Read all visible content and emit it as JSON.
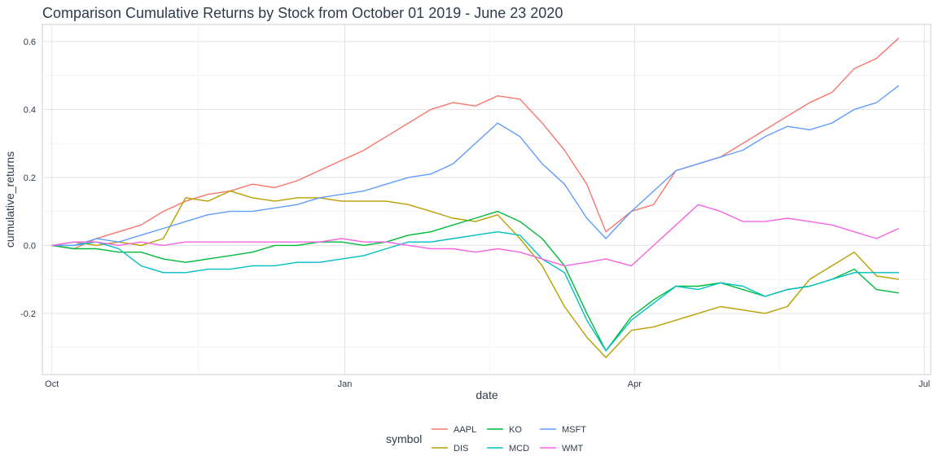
{
  "chart_data": {
    "type": "line",
    "title": "Comparison Cumulative Returns by Stock from October 01 2019 - June 23 2020",
    "xlabel": "date",
    "ylabel": "cumulative_returns",
    "xlim": [
      "2019-09-28",
      "2020-07-03"
    ],
    "ylim": [
      -0.38,
      0.65
    ],
    "x_ticks": [
      {
        "label": "Oct",
        "date": "2019-10-01"
      },
      {
        "label": "Jan",
        "date": "2020-01-01"
      },
      {
        "label": "Apr",
        "date": "2020-04-01"
      },
      {
        "label": "Jul",
        "date": "2020-07-01"
      }
    ],
    "y_ticks": [
      {
        "label": "-0.2",
        "value": -0.2
      },
      {
        "label": "0.0",
        "value": 0.0
      },
      {
        "label": "0.2",
        "value": 0.2
      },
      {
        "label": "0.4",
        "value": 0.4
      },
      {
        "label": "0.6",
        "value": 0.6
      }
    ],
    "grid": true,
    "legend": {
      "title": "symbol",
      "placement": "bottom"
    },
    "series": [
      {
        "name": "AAPL",
        "color": "#F8766D",
        "points": [
          [
            "2019-10-01",
            0.0
          ],
          [
            "2019-10-08",
            -0.01
          ],
          [
            "2019-10-15",
            0.02
          ],
          [
            "2019-10-22",
            0.04
          ],
          [
            "2019-10-29",
            0.06
          ],
          [
            "2019-11-05",
            0.1
          ],
          [
            "2019-11-12",
            0.13
          ],
          [
            "2019-11-19",
            0.15
          ],
          [
            "2019-11-26",
            0.16
          ],
          [
            "2019-12-03",
            0.18
          ],
          [
            "2019-12-10",
            0.17
          ],
          [
            "2019-12-17",
            0.19
          ],
          [
            "2019-12-24",
            0.22
          ],
          [
            "2019-12-31",
            0.25
          ],
          [
            "2020-01-07",
            0.28
          ],
          [
            "2020-01-14",
            0.32
          ],
          [
            "2020-01-21",
            0.36
          ],
          [
            "2020-01-28",
            0.4
          ],
          [
            "2020-02-04",
            0.42
          ],
          [
            "2020-02-11",
            0.41
          ],
          [
            "2020-02-18",
            0.44
          ],
          [
            "2020-02-25",
            0.43
          ],
          [
            "2020-03-03",
            0.36
          ],
          [
            "2020-03-10",
            0.28
          ],
          [
            "2020-03-17",
            0.18
          ],
          [
            "2020-03-23",
            0.04
          ],
          [
            "2020-03-31",
            0.1
          ],
          [
            "2020-04-07",
            0.12
          ],
          [
            "2020-04-14",
            0.22
          ],
          [
            "2020-04-21",
            0.24
          ],
          [
            "2020-04-28",
            0.26
          ],
          [
            "2020-05-05",
            0.3
          ],
          [
            "2020-05-12",
            0.34
          ],
          [
            "2020-05-19",
            0.38
          ],
          [
            "2020-05-26",
            0.42
          ],
          [
            "2020-06-02",
            0.45
          ],
          [
            "2020-06-09",
            0.52
          ],
          [
            "2020-06-16",
            0.55
          ],
          [
            "2020-06-23",
            0.61
          ]
        ]
      },
      {
        "name": "DIS",
        "color": "#B79F00",
        "points": [
          [
            "2019-10-01",
            0.0
          ],
          [
            "2019-10-08",
            0.01
          ],
          [
            "2019-10-15",
            0.0
          ],
          [
            "2019-10-22",
            0.01
          ],
          [
            "2019-10-29",
            0.0
          ],
          [
            "2019-11-05",
            0.02
          ],
          [
            "2019-11-12",
            0.14
          ],
          [
            "2019-11-19",
            0.13
          ],
          [
            "2019-11-26",
            0.16
          ],
          [
            "2019-12-03",
            0.14
          ],
          [
            "2019-12-10",
            0.13
          ],
          [
            "2019-12-17",
            0.14
          ],
          [
            "2019-12-24",
            0.14
          ],
          [
            "2019-12-31",
            0.13
          ],
          [
            "2020-01-07",
            0.13
          ],
          [
            "2020-01-14",
            0.13
          ],
          [
            "2020-01-21",
            0.12
          ],
          [
            "2020-01-28",
            0.1
          ],
          [
            "2020-02-04",
            0.08
          ],
          [
            "2020-02-11",
            0.07
          ],
          [
            "2020-02-18",
            0.09
          ],
          [
            "2020-02-25",
            0.02
          ],
          [
            "2020-03-03",
            -0.06
          ],
          [
            "2020-03-10",
            -0.18
          ],
          [
            "2020-03-17",
            -0.27
          ],
          [
            "2020-03-23",
            -0.33
          ],
          [
            "2020-03-31",
            -0.25
          ],
          [
            "2020-04-07",
            -0.24
          ],
          [
            "2020-04-14",
            -0.22
          ],
          [
            "2020-04-21",
            -0.2
          ],
          [
            "2020-04-28",
            -0.18
          ],
          [
            "2020-05-05",
            -0.19
          ],
          [
            "2020-05-12",
            -0.2
          ],
          [
            "2020-05-19",
            -0.18
          ],
          [
            "2020-05-26",
            -0.1
          ],
          [
            "2020-06-02",
            -0.06
          ],
          [
            "2020-06-09",
            -0.02
          ],
          [
            "2020-06-16",
            -0.09
          ],
          [
            "2020-06-23",
            -0.1
          ]
        ]
      },
      {
        "name": "KO",
        "color": "#00BA38",
        "points": [
          [
            "2019-10-01",
            0.0
          ],
          [
            "2019-10-08",
            -0.01
          ],
          [
            "2019-10-15",
            -0.01
          ],
          [
            "2019-10-22",
            -0.02
          ],
          [
            "2019-10-29",
            -0.02
          ],
          [
            "2019-11-05",
            -0.04
          ],
          [
            "2019-11-12",
            -0.05
          ],
          [
            "2019-11-19",
            -0.04
          ],
          [
            "2019-11-26",
            -0.03
          ],
          [
            "2019-12-03",
            -0.02
          ],
          [
            "2019-12-10",
            0.0
          ],
          [
            "2019-12-17",
            0.0
          ],
          [
            "2019-12-24",
            0.01
          ],
          [
            "2019-12-31",
            0.01
          ],
          [
            "2020-01-07",
            0.0
          ],
          [
            "2020-01-14",
            0.01
          ],
          [
            "2020-01-21",
            0.03
          ],
          [
            "2020-01-28",
            0.04
          ],
          [
            "2020-02-04",
            0.06
          ],
          [
            "2020-02-11",
            0.08
          ],
          [
            "2020-02-18",
            0.1
          ],
          [
            "2020-02-25",
            0.07
          ],
          [
            "2020-03-03",
            0.02
          ],
          [
            "2020-03-10",
            -0.06
          ],
          [
            "2020-03-17",
            -0.2
          ],
          [
            "2020-03-23",
            -0.31
          ],
          [
            "2020-03-31",
            -0.21
          ],
          [
            "2020-04-07",
            -0.16
          ],
          [
            "2020-04-14",
            -0.12
          ],
          [
            "2020-04-21",
            -0.12
          ],
          [
            "2020-04-28",
            -0.11
          ],
          [
            "2020-05-05",
            -0.13
          ],
          [
            "2020-05-12",
            -0.15
          ],
          [
            "2020-05-19",
            -0.13
          ],
          [
            "2020-05-26",
            -0.12
          ],
          [
            "2020-06-02",
            -0.1
          ],
          [
            "2020-06-09",
            -0.07
          ],
          [
            "2020-06-16",
            -0.13
          ],
          [
            "2020-06-23",
            -0.14
          ]
        ]
      },
      {
        "name": "MCD",
        "color": "#00BFC4",
        "points": [
          [
            "2019-10-01",
            0.0
          ],
          [
            "2019-10-08",
            0.0
          ],
          [
            "2019-10-15",
            0.01
          ],
          [
            "2019-10-22",
            -0.01
          ],
          [
            "2019-10-29",
            -0.06
          ],
          [
            "2019-11-05",
            -0.08
          ],
          [
            "2019-11-12",
            -0.08
          ],
          [
            "2019-11-19",
            -0.07
          ],
          [
            "2019-11-26",
            -0.07
          ],
          [
            "2019-12-03",
            -0.06
          ],
          [
            "2019-12-10",
            -0.06
          ],
          [
            "2019-12-17",
            -0.05
          ],
          [
            "2019-12-24",
            -0.05
          ],
          [
            "2019-12-31",
            -0.04
          ],
          [
            "2020-01-07",
            -0.03
          ],
          [
            "2020-01-14",
            -0.01
          ],
          [
            "2020-01-21",
            0.01
          ],
          [
            "2020-01-28",
            0.01
          ],
          [
            "2020-02-04",
            0.02
          ],
          [
            "2020-02-11",
            0.03
          ],
          [
            "2020-02-18",
            0.04
          ],
          [
            "2020-02-25",
            0.03
          ],
          [
            "2020-03-03",
            -0.04
          ],
          [
            "2020-03-10",
            -0.08
          ],
          [
            "2020-03-17",
            -0.22
          ],
          [
            "2020-03-23",
            -0.31
          ],
          [
            "2020-03-31",
            -0.22
          ],
          [
            "2020-04-07",
            -0.17
          ],
          [
            "2020-04-14",
            -0.12
          ],
          [
            "2020-04-21",
            -0.13
          ],
          [
            "2020-04-28",
            -0.11
          ],
          [
            "2020-05-05",
            -0.12
          ],
          [
            "2020-05-12",
            -0.15
          ],
          [
            "2020-05-19",
            -0.13
          ],
          [
            "2020-05-26",
            -0.12
          ],
          [
            "2020-06-02",
            -0.1
          ],
          [
            "2020-06-09",
            -0.08
          ],
          [
            "2020-06-16",
            -0.08
          ],
          [
            "2020-06-23",
            -0.08
          ]
        ]
      },
      {
        "name": "MSFT",
        "color": "#619CFF",
        "points": [
          [
            "2019-10-01",
            0.0
          ],
          [
            "2019-10-08",
            0.0
          ],
          [
            "2019-10-15",
            0.02
          ],
          [
            "2019-10-22",
            0.01
          ],
          [
            "2019-10-29",
            0.03
          ],
          [
            "2019-11-05",
            0.05
          ],
          [
            "2019-11-12",
            0.07
          ],
          [
            "2019-11-19",
            0.09
          ],
          [
            "2019-11-26",
            0.1
          ],
          [
            "2019-12-03",
            0.1
          ],
          [
            "2019-12-10",
            0.11
          ],
          [
            "2019-12-17",
            0.12
          ],
          [
            "2019-12-24",
            0.14
          ],
          [
            "2019-12-31",
            0.15
          ],
          [
            "2020-01-07",
            0.16
          ],
          [
            "2020-01-14",
            0.18
          ],
          [
            "2020-01-21",
            0.2
          ],
          [
            "2020-01-28",
            0.21
          ],
          [
            "2020-02-04",
            0.24
          ],
          [
            "2020-02-11",
            0.3
          ],
          [
            "2020-02-18",
            0.36
          ],
          [
            "2020-02-25",
            0.32
          ],
          [
            "2020-03-03",
            0.24
          ],
          [
            "2020-03-10",
            0.18
          ],
          [
            "2020-03-17",
            0.08
          ],
          [
            "2020-03-23",
            0.02
          ],
          [
            "2020-03-31",
            0.1
          ],
          [
            "2020-04-07",
            0.16
          ],
          [
            "2020-04-14",
            0.22
          ],
          [
            "2020-04-21",
            0.24
          ],
          [
            "2020-04-28",
            0.26
          ],
          [
            "2020-05-05",
            0.28
          ],
          [
            "2020-05-12",
            0.32
          ],
          [
            "2020-05-19",
            0.35
          ],
          [
            "2020-05-26",
            0.34
          ],
          [
            "2020-06-02",
            0.36
          ],
          [
            "2020-06-09",
            0.4
          ],
          [
            "2020-06-16",
            0.42
          ],
          [
            "2020-06-23",
            0.47
          ]
        ]
      },
      {
        "name": "WMT",
        "color": "#F564E3",
        "points": [
          [
            "2019-10-01",
            0.0
          ],
          [
            "2019-10-08",
            0.01
          ],
          [
            "2019-10-15",
            0.01
          ],
          [
            "2019-10-22",
            0.0
          ],
          [
            "2019-10-29",
            0.01
          ],
          [
            "2019-11-05",
            0.0
          ],
          [
            "2019-11-12",
            0.01
          ],
          [
            "2019-11-19",
            0.01
          ],
          [
            "2019-11-26",
            0.01
          ],
          [
            "2019-12-03",
            0.01
          ],
          [
            "2019-12-10",
            0.01
          ],
          [
            "2019-12-17",
            0.01
          ],
          [
            "2019-12-24",
            0.01
          ],
          [
            "2019-12-31",
            0.02
          ],
          [
            "2020-01-07",
            0.01
          ],
          [
            "2020-01-14",
            0.01
          ],
          [
            "2020-01-21",
            0.0
          ],
          [
            "2020-01-28",
            -0.01
          ],
          [
            "2020-02-04",
            -0.01
          ],
          [
            "2020-02-11",
            -0.02
          ],
          [
            "2020-02-18",
            -0.01
          ],
          [
            "2020-02-25",
            -0.02
          ],
          [
            "2020-03-03",
            -0.04
          ],
          [
            "2020-03-10",
            -0.06
          ],
          [
            "2020-03-17",
            -0.05
          ],
          [
            "2020-03-23",
            -0.04
          ],
          [
            "2020-03-31",
            -0.06
          ],
          [
            "2020-04-07",
            0.0
          ],
          [
            "2020-04-14",
            0.06
          ],
          [
            "2020-04-21",
            0.12
          ],
          [
            "2020-04-28",
            0.1
          ],
          [
            "2020-05-05",
            0.07
          ],
          [
            "2020-05-12",
            0.07
          ],
          [
            "2020-05-19",
            0.08
          ],
          [
            "2020-05-26",
            0.07
          ],
          [
            "2020-06-02",
            0.06
          ],
          [
            "2020-06-09",
            0.04
          ],
          [
            "2020-06-16",
            0.02
          ],
          [
            "2020-06-23",
            0.05
          ]
        ]
      }
    ]
  }
}
